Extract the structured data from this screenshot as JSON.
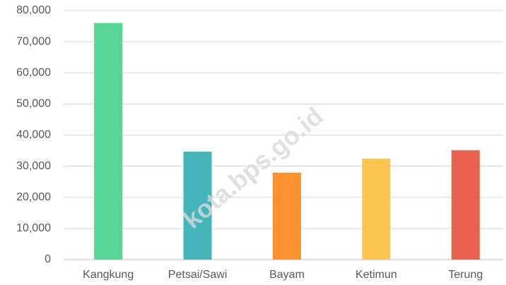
{
  "chart_data": {
    "type": "bar",
    "categories": [
      "Kangkung",
      "Petsai/Sawi",
      "Bayam",
      "Ketimun",
      "Terung"
    ],
    "values": [
      76000,
      34700,
      27900,
      32400,
      35100
    ],
    "colors": [
      "#57d698",
      "#45b4bb",
      "#fd9330",
      "#fdc450",
      "#e9614d"
    ],
    "ylim": [
      0,
      80000
    ],
    "yticks": [
      0,
      {
        "value": 10000,
        "label": "10,000"
      },
      {
        "value": 20000,
        "label": "20,000"
      },
      {
        "value": 30000,
        "label": "30,000"
      },
      {
        "value": 40000,
        "label": "40,000"
      },
      {
        "value": 50000,
        "label": "50,000"
      },
      {
        "value": 60000,
        "label": "60,000"
      },
      {
        "value": 70000,
        "label": "70,000"
      },
      {
        "value": 80000,
        "label": "80,000"
      }
    ],
    "grid": true,
    "watermark": "kota.bps.go.id"
  }
}
